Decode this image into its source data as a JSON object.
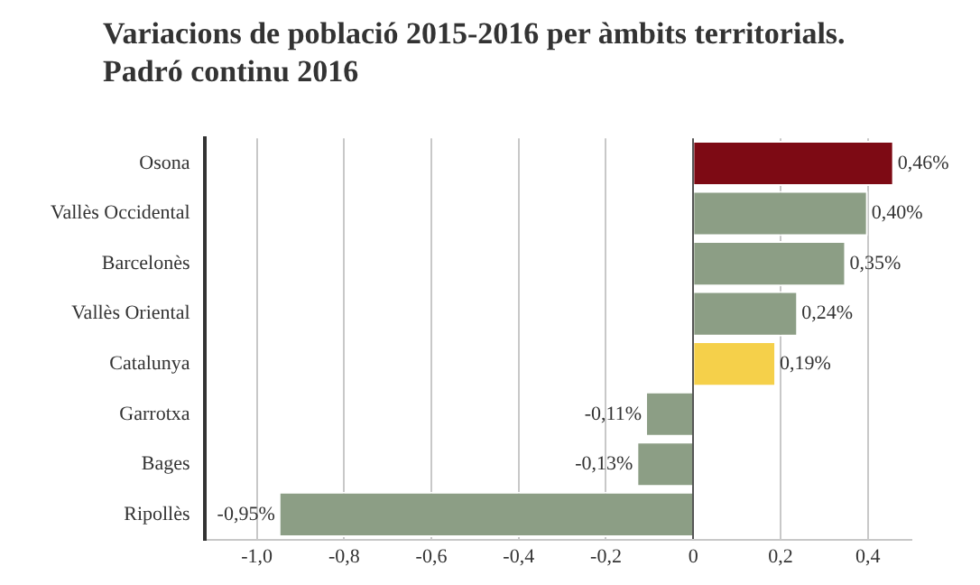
{
  "chart_data": {
    "type": "bar",
    "orientation": "horizontal",
    "title": "Variacions de població 2015-2016 per àmbits territorials. Padró continu 2016",
    "categories": [
      "Osona",
      "Vallès Occidental",
      "Barcelonès",
      "Vallès Oriental",
      "Catalunya",
      "Garrotxa",
      "Bages",
      "Ripollès"
    ],
    "values": [
      0.46,
      0.4,
      0.35,
      0.24,
      0.19,
      -0.11,
      -0.13,
      -0.95
    ],
    "colors": [
      "#7d0a14",
      "#8c9e85",
      "#8c9e85",
      "#8c9e85",
      "#f5d04a",
      "#8c9e85",
      "#8c9e85",
      "#8c9e85"
    ],
    "value_labels": [
      "0,46%",
      "0,40%",
      "0,35%",
      "0,24%",
      "0,19%",
      "-0,11%",
      "-0,13%",
      "-0,95%"
    ],
    "xlim": [
      -1.12,
      0.5
    ],
    "xticks": [
      {
        "value": -1,
        "label": "-1,0"
      },
      {
        "value": -0.8,
        "label": "-0,8"
      },
      {
        "value": -0.6,
        "label": "-0,6"
      },
      {
        "value": -0.4,
        "label": "-0,4"
      },
      {
        "value": -0.2,
        "label": "-0,2"
      },
      0,
      {
        "value": 0.2,
        "label": "0,2"
      },
      {
        "value": 0.4,
        "label": "0,4"
      }
    ],
    "grid": "x",
    "legend": false
  }
}
